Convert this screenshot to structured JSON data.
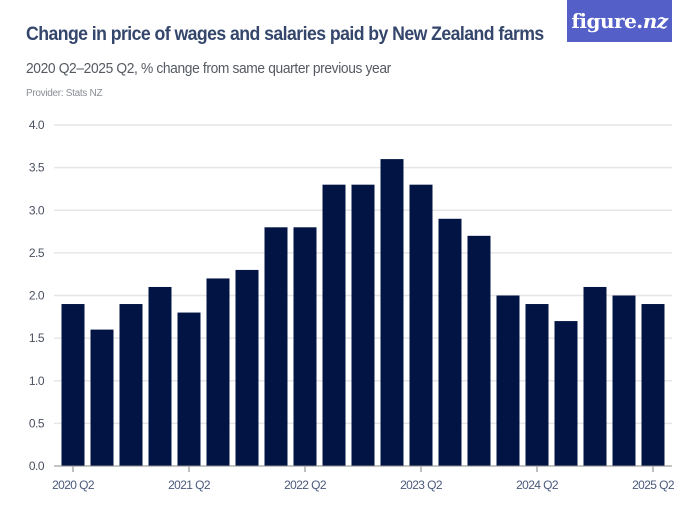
{
  "header": {
    "title": "Change in price of wages and salaries paid by New Zealand farms",
    "subtitle": "2020 Q2–2025 Q2, % change from same quarter previous year",
    "provider": "Provider: Stats NZ",
    "logo_main": "figure.",
    "logo_suffix": "nz"
  },
  "colors": {
    "bar": "#021444",
    "title": "#34466b",
    "logo_bg": "#5460c8",
    "grid": "#e6e6e6",
    "axis": "#888888"
  },
  "chart_data": {
    "type": "bar",
    "title": "Change in price of wages and salaries paid by New Zealand farms",
    "subtitle": "2020 Q2–2025 Q2, % change from same quarter previous year",
    "xlabel": "",
    "ylabel": "",
    "ylim": [
      0,
      4.0
    ],
    "yticks": [
      "0.0",
      "0.5",
      "1.0",
      "1.5",
      "2.0",
      "2.5",
      "3.0",
      "3.5",
      "4.0"
    ],
    "xtick_labels": [
      "2020 Q2",
      "2021 Q2",
      "2022 Q2",
      "2023 Q2",
      "2024 Q2",
      "2025 Q2"
    ],
    "grid": true,
    "legend": null,
    "categories": [
      "2020 Q2",
      "2020 Q3",
      "2020 Q4",
      "2021 Q1",
      "2021 Q2",
      "2021 Q3",
      "2021 Q4",
      "2022 Q1",
      "2022 Q2",
      "2022 Q3",
      "2022 Q4",
      "2023 Q1",
      "2023 Q2",
      "2023 Q3",
      "2023 Q4",
      "2024 Q1",
      "2024 Q2",
      "2024 Q3",
      "2024 Q4",
      "2025 Q1",
      "2025 Q2"
    ],
    "values": [
      1.9,
      1.6,
      1.9,
      2.1,
      1.8,
      2.2,
      2.3,
      2.8,
      2.8,
      3.3,
      3.3,
      3.6,
      3.3,
      2.9,
      2.7,
      2.0,
      1.9,
      1.7,
      2.1,
      2.0,
      1.9
    ]
  }
}
